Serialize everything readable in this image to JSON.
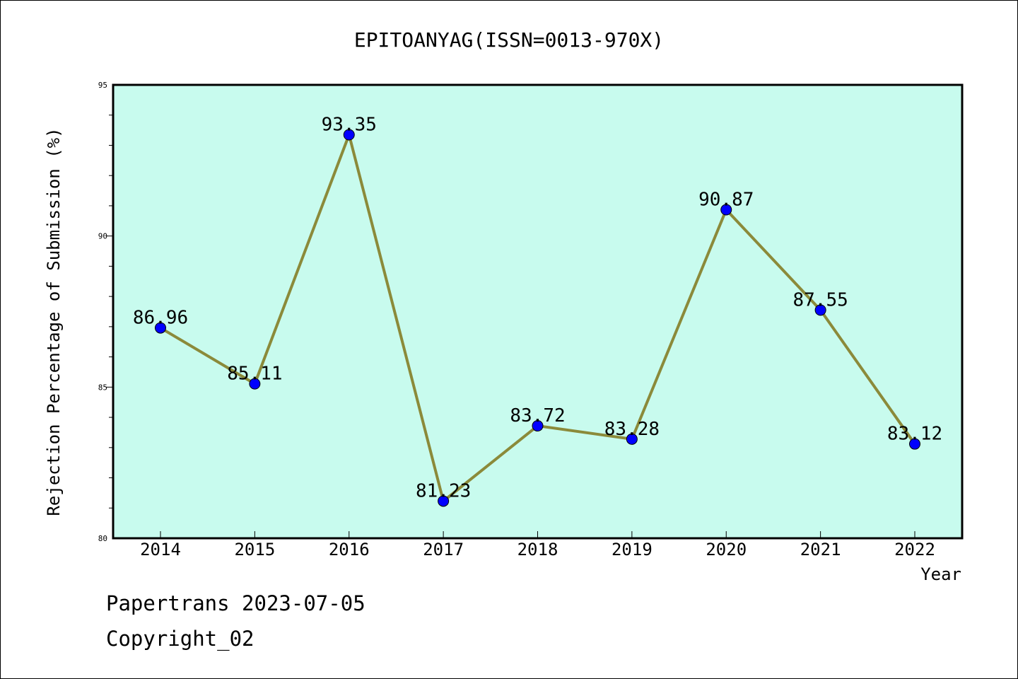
{
  "chart_data": {
    "type": "line",
    "title": "EPITOANYAG(ISSN=0013-970X)",
    "xlabel": "Year",
    "ylabel": "Rejection Percentage of Submission (%)",
    "categories": [
      "2014",
      "2015",
      "2016",
      "2017",
      "2018",
      "2019",
      "2020",
      "2021",
      "2022"
    ],
    "values": [
      86.96,
      85.11,
      93.35,
      81.23,
      83.72,
      83.28,
      90.87,
      87.55,
      83.12
    ],
    "data_labels": [
      "86.96",
      "85.11",
      "93.35",
      "81.23",
      "83.72",
      "83.28",
      "90.87",
      "87.55",
      "83.12"
    ],
    "ylim": [
      80,
      95
    ],
    "yticks": [
      80,
      85,
      90,
      95
    ],
    "ytick_labels": [
      "80",
      "85",
      "90",
      "95"
    ],
    "grid": false,
    "colors": {
      "plot_background": "#c8fbee",
      "line": "#8b8a3a",
      "marker": "#0000ff"
    }
  },
  "footer": {
    "line1": "Papertrans 2023-07-05",
    "line2": "Copyright_02"
  }
}
